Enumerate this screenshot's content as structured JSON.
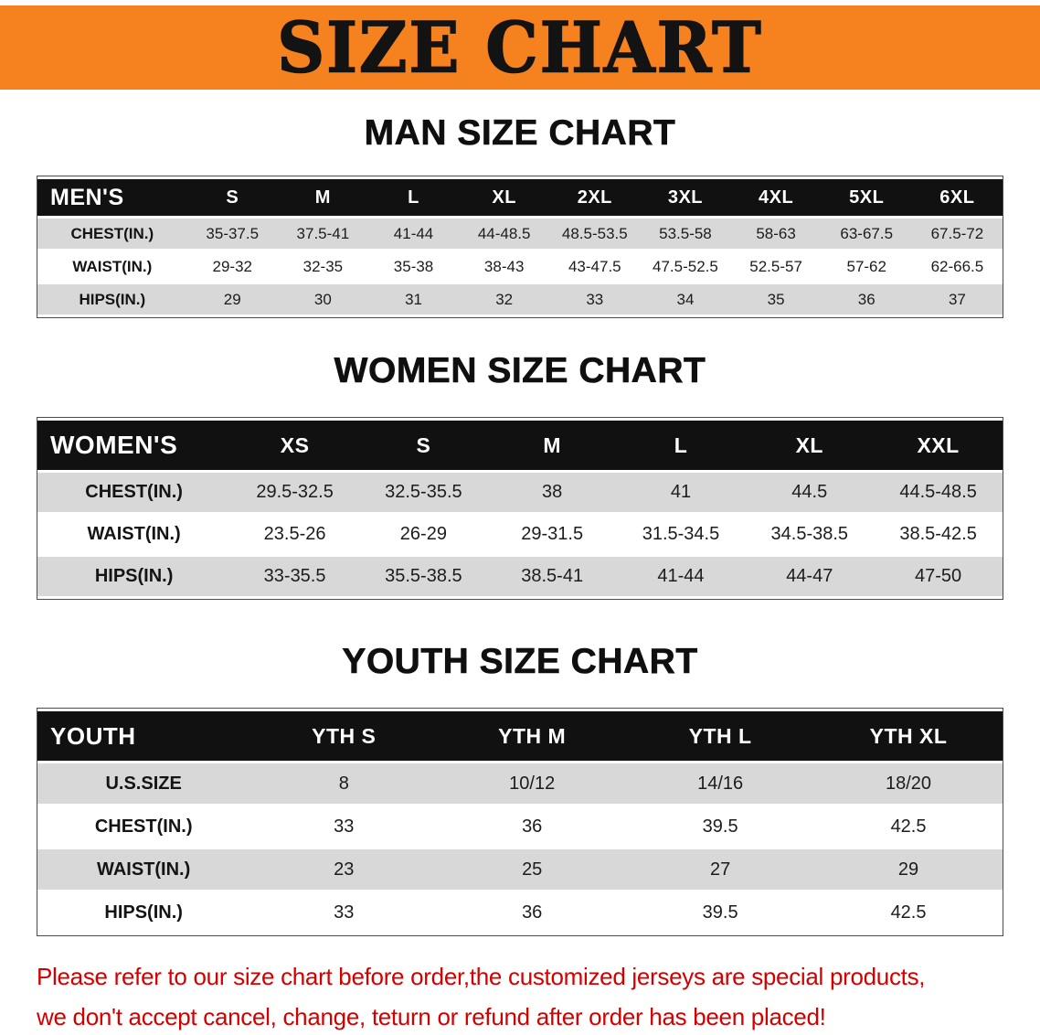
{
  "banner": {
    "title": "SIZE CHART",
    "bg_color": "#f5821f"
  },
  "colors": {
    "table_header_bg": "#111111",
    "row_gray": "#d8d8d8"
  },
  "chart_data": [
    {
      "type": "table",
      "title": "MAN SIZE CHART",
      "corner": "MEN'S",
      "columns": [
        "S",
        "M",
        "L",
        "XL",
        "2XL",
        "3XL",
        "4XL",
        "5XL",
        "6XL"
      ],
      "rows": [
        {
          "label": "CHEST(IN.)",
          "values": [
            "35-37.5",
            "37.5-41",
            "41-44",
            "44-48.5",
            "48.5-53.5",
            "53.5-58",
            "58-63",
            "63-67.5",
            "67.5-72"
          ]
        },
        {
          "label": "WAIST(IN.)",
          "values": [
            "29-32",
            "32-35",
            "35-38",
            "38-43",
            "43-47.5",
            "47.5-52.5",
            "52.5-57",
            "57-62",
            "62-66.5"
          ]
        },
        {
          "label": "HIPS(IN.)",
          "values": [
            "29",
            "30",
            "31",
            "32",
            "33",
            "34",
            "35",
            "36",
            "37"
          ]
        }
      ]
    },
    {
      "type": "table",
      "title": "WOMEN SIZE CHART",
      "corner": "WOMEN'S",
      "columns": [
        "XS",
        "S",
        "M",
        "L",
        "XL",
        "XXL"
      ],
      "rows": [
        {
          "label": "CHEST(IN.)",
          "values": [
            "29.5-32.5",
            "32.5-35.5",
            "38",
            "41",
            "44.5",
            "44.5-48.5"
          ]
        },
        {
          "label": "WAIST(IN.)",
          "values": [
            "23.5-26",
            "26-29",
            "29-31.5",
            "31.5-34.5",
            "34.5-38.5",
            "38.5-42.5"
          ]
        },
        {
          "label": "HIPS(IN.)",
          "values": [
            "33-35.5",
            "35.5-38.5",
            "38.5-41",
            "41-44",
            "44-47",
            "47-50"
          ]
        }
      ]
    },
    {
      "type": "table",
      "title": "YOUTH SIZE CHART",
      "corner": "YOUTH",
      "columns": [
        "YTH S",
        "YTH M",
        "YTH L",
        "YTH XL"
      ],
      "rows": [
        {
          "label": "U.S.SIZE",
          "values": [
            "8",
            "10/12",
            "14/16",
            "18/20"
          ]
        },
        {
          "label": "CHEST(IN.)",
          "values": [
            "33",
            "36",
            "39.5",
            "42.5"
          ]
        },
        {
          "label": "WAIST(IN.)",
          "values": [
            "23",
            "25",
            "27",
            "29"
          ]
        },
        {
          "label": "HIPS(IN.)",
          "values": [
            "33",
            "36",
            "39.5",
            "42.5"
          ]
        }
      ]
    }
  ],
  "footer": {
    "line1": "Please refer to our size chart before order,the customized jerseys are special products,",
    "line2": "we don't accept cancel, change, teturn or refund after order has been placed!",
    "color": "#d40000"
  }
}
